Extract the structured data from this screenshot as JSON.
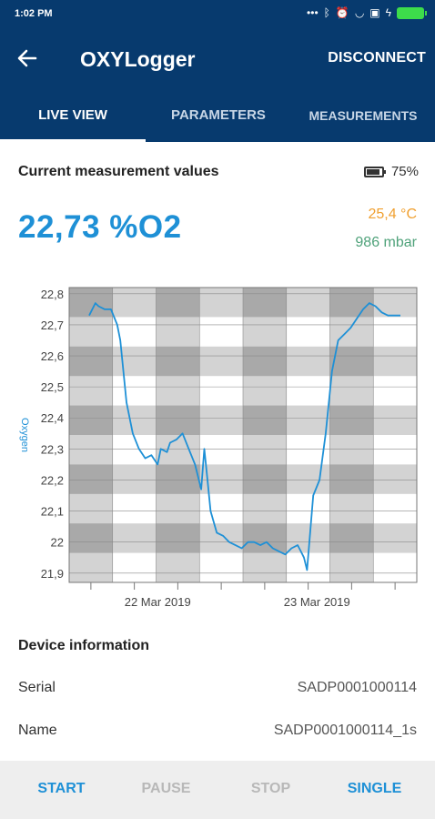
{
  "status_bar": {
    "time": "1:02 PM",
    "icons": [
      "dots-icon",
      "bluetooth-icon",
      "alarm-icon",
      "wifi-icon",
      "sim-icon",
      "charging-icon",
      "battery-icon"
    ],
    "battery_color": "#3ddc4b"
  },
  "app_bar": {
    "title": "OXYLogger",
    "back_icon": "arrow-left-icon",
    "action": "DISCONNECT",
    "bg_color": "#073a6e"
  },
  "tabs": [
    {
      "label": "LIVE VIEW",
      "active": true
    },
    {
      "label": "PARAMETERS",
      "active": false
    },
    {
      "label": "MEASUREMENTS",
      "active": false
    }
  ],
  "current": {
    "title": "Current measurement values",
    "battery": "75%",
    "oxygen": "22,73 %O2",
    "temperature": "25,4 °C",
    "pressure": "986 mbar",
    "oxygen_color": "#1e90d6",
    "temperature_color": "#f0a030",
    "pressure_color": "#4fa27a"
  },
  "chart_data": {
    "type": "line",
    "ylabel": "Oxygen",
    "ylim": [
      21.87,
      22.82
    ],
    "y_ticks": [
      "22,8",
      "22,7",
      "22,6",
      "22,5",
      "22,4",
      "22,3",
      "22,2",
      "22,1",
      "22",
      "21,9"
    ],
    "y_tick_values": [
      22.8,
      22.7,
      22.6,
      22.5,
      22.4,
      22.3,
      22.2,
      22.1,
      22.0,
      21.9
    ],
    "x_tick_labels": [
      "22 Mar 2019",
      "23 Mar 2019"
    ],
    "x_label_positions": [
      0.2545,
      0.7127
    ],
    "grid": true,
    "line_color": "#1e90d6",
    "series": [
      {
        "x": [
          0.0,
          0.02,
          0.03,
          0.05,
          0.07,
          0.09,
          0.1,
          0.12,
          0.14,
          0.16,
          0.18,
          0.2,
          0.22,
          0.23,
          0.25,
          0.26,
          0.28,
          0.3,
          0.32,
          0.34,
          0.36,
          0.37,
          0.38,
          0.39,
          0.41,
          0.43,
          0.45,
          0.47,
          0.49,
          0.51,
          0.53,
          0.55,
          0.57,
          0.59,
          0.61,
          0.63,
          0.65,
          0.67,
          0.68,
          0.69,
          0.7,
          0.72,
          0.74,
          0.76,
          0.78,
          0.8,
          0.82,
          0.84,
          0.86,
          0.88,
          0.9,
          0.92,
          0.94,
          0.96,
          0.98,
          1.0
        ],
        "y": [
          22.73,
          22.77,
          22.76,
          22.75,
          22.75,
          22.7,
          22.65,
          22.45,
          22.35,
          22.3,
          22.27,
          22.28,
          22.25,
          22.3,
          22.29,
          22.32,
          22.33,
          22.35,
          22.3,
          22.25,
          22.17,
          22.3,
          22.2,
          22.1,
          22.03,
          22.02,
          22.0,
          21.99,
          21.98,
          22.0,
          22.0,
          21.99,
          22.0,
          21.98,
          21.97,
          21.96,
          21.98,
          21.99,
          21.97,
          21.95,
          21.91,
          22.15,
          22.2,
          22.35,
          22.55,
          22.65,
          22.67,
          22.69,
          22.72,
          22.75,
          22.77,
          22.76,
          22.74,
          22.73,
          22.73,
          22.73
        ]
      }
    ]
  },
  "device": {
    "title": "Device information",
    "serial_label": "Serial",
    "serial_value": "SADP0001000114",
    "name_label": "Name",
    "name_value": "SADP0001000114_1s"
  },
  "actions": {
    "start": "START",
    "pause": "PAUSE",
    "stop": "STOP",
    "single": "SINGLE"
  }
}
